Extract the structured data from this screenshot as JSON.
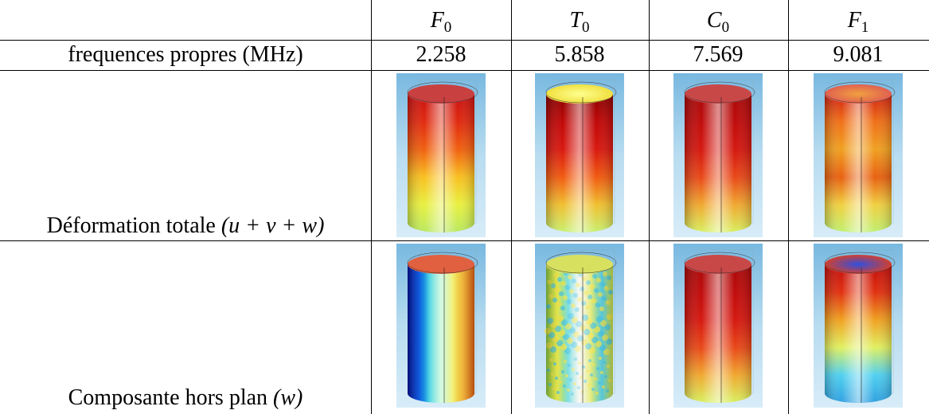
{
  "table": {
    "header": [
      {
        "symbol": "F",
        "subscript": "0"
      },
      {
        "symbol": "T",
        "subscript": "0"
      },
      {
        "symbol": "C",
        "subscript": "0"
      },
      {
        "symbol": "F",
        "subscript": "1"
      }
    ],
    "rows": [
      {
        "label": "frequences propres (MHz)",
        "values": [
          2.258,
          5.858,
          7.569,
          9.081
        ]
      },
      {
        "label": "Déformation totale",
        "math": "(u + v + w)"
      },
      {
        "label": "Composante hors plan",
        "math": "(w)"
      }
    ]
  }
}
